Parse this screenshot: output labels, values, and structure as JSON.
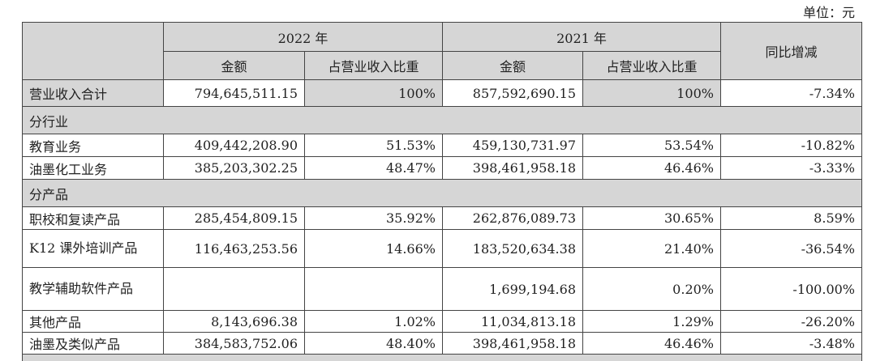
{
  "unit_label": "单位：元",
  "header": {
    "year_2022": "2022 年",
    "year_2021": "2021 年",
    "amount": "金额",
    "share": "占营业收入比重",
    "yoy": "同比增减"
  },
  "total": {
    "label": "营业收入合计",
    "amt2022": "794,645,511.15",
    "pct2022": "100%",
    "amt2021": "857,592,690.15",
    "pct2021": "100%",
    "yoy": "-7.34%"
  },
  "section_industry": "分行业",
  "industry_rows": [
    {
      "label": "教育业务",
      "amt2022": "409,442,208.90",
      "pct2022": "51.53%",
      "amt2021": "459,130,731.97",
      "pct2021": "53.54%",
      "yoy": "-10.82%"
    },
    {
      "label": "油墨化工业务",
      "amt2022": "385,203,302.25",
      "pct2022": "48.47%",
      "amt2021": "398,461,958.18",
      "pct2021": "46.46%",
      "yoy": "-3.33%"
    }
  ],
  "section_product": "分产品",
  "product_rows": [
    {
      "label": "职校和复读产品",
      "amt2022": "285,454,809.15",
      "pct2022": "35.92%",
      "amt2021": "262,876,089.73",
      "pct2021": "30.65%",
      "yoy": "8.59%"
    },
    {
      "label": "K12 课外培训产品",
      "amt2022": "116,463,253.56",
      "pct2022": "14.66%",
      "amt2021": "183,520,634.38",
      "pct2021": "21.40%",
      "yoy": "-36.54%"
    },
    {
      "label": "教学辅助软件产品",
      "amt2022": "",
      "pct2022": "",
      "amt2021": "1,699,194.68",
      "pct2021": "0.20%",
      "yoy": "-100.00%"
    },
    {
      "label": "其他产品",
      "amt2022": "8,143,696.38",
      "pct2022": "1.02%",
      "amt2021": "11,034,813.18",
      "pct2021": "1.29%",
      "yoy": "-26.20%"
    },
    {
      "label": "油墨及类似产品",
      "amt2022": "384,583,752.06",
      "pct2022": "48.40%",
      "amt2021": "398,461,958.18",
      "pct2021": "46.46%",
      "yoy": "-3.48%"
    }
  ]
}
